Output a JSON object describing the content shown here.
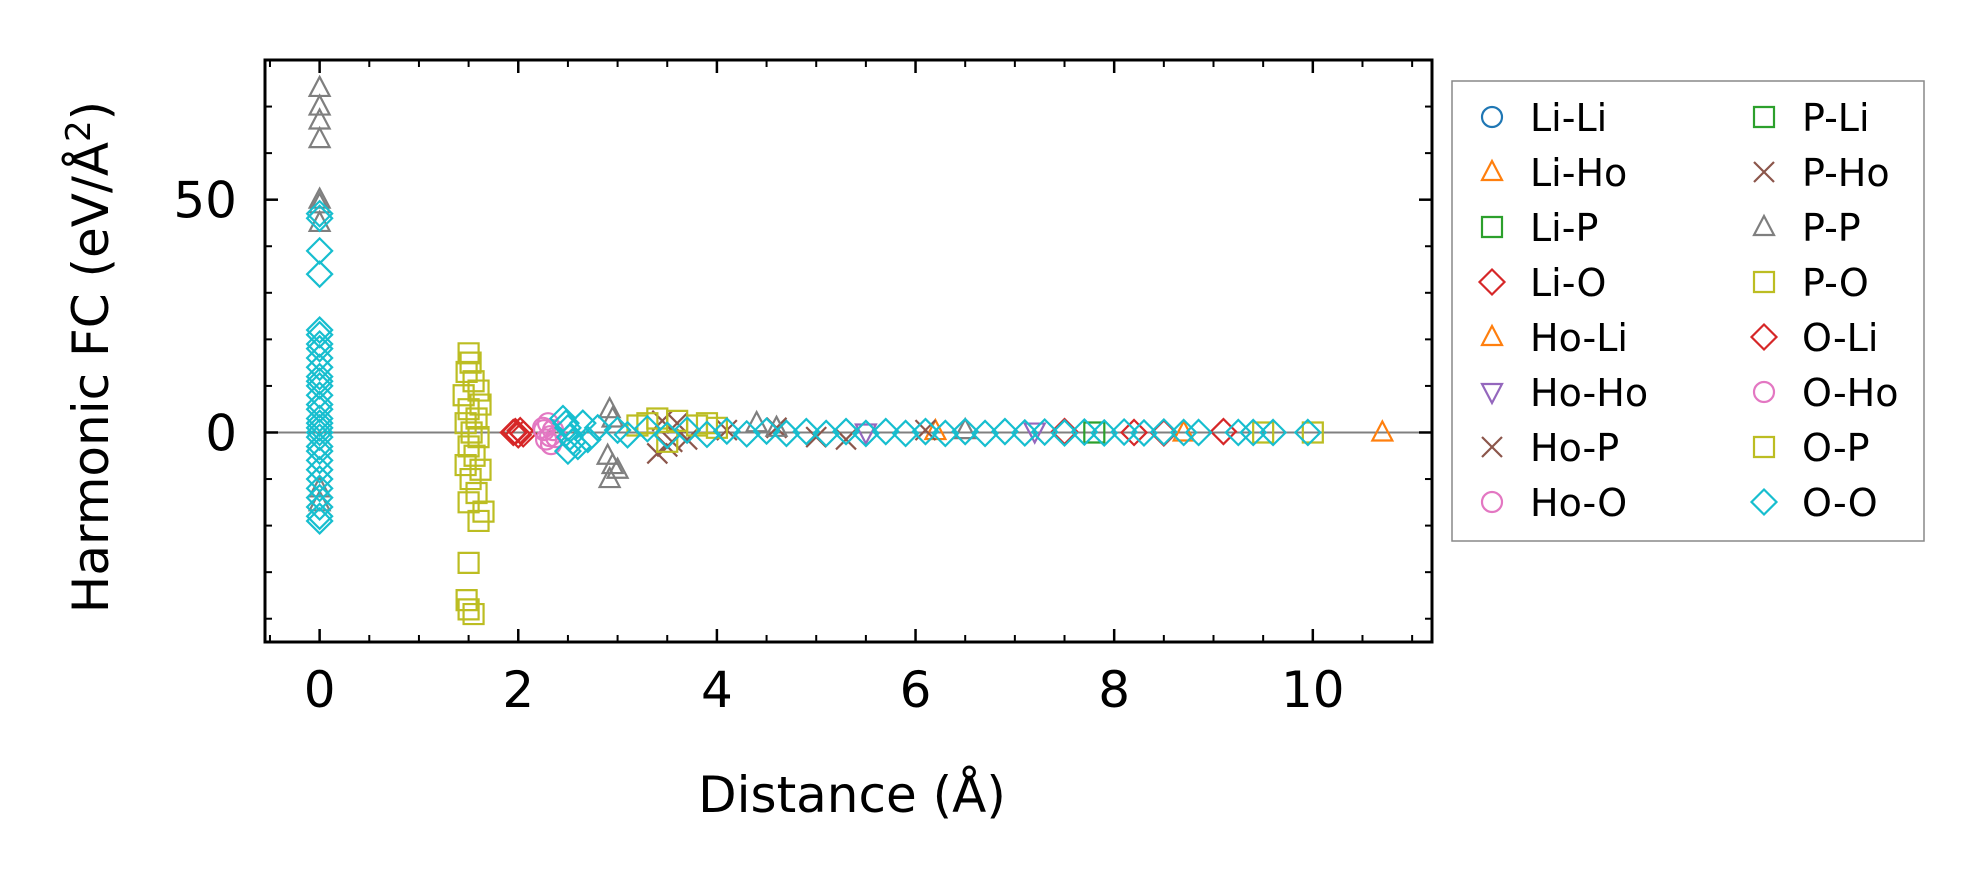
{
  "chart_data": {
    "type": "scatter",
    "xlabel": "Distance (Å)",
    "ylabel_main": "Harmonic FC (eV/Å",
    "ylabel_sup": "2",
    "ylabel_close": ")",
    "xlim": [
      -0.55,
      11.2
    ],
    "ylim": [
      -45,
      80
    ],
    "xticks": [
      0,
      2,
      4,
      6,
      8,
      10
    ],
    "xtick_labels": [
      "0",
      "2",
      "4",
      "6",
      "8",
      "10"
    ],
    "yticks": [
      0,
      50
    ],
    "ytick_labels": [
      "0",
      "50"
    ],
    "x_minor_step": 0.5,
    "y_minor_step": 10,
    "reference_line_y": 0,
    "legend_position": "outside-right",
    "series": [
      {
        "name": "Li-Li",
        "marker": "circle",
        "color": "#1f77b4",
        "points": []
      },
      {
        "name": "Li-Ho",
        "marker": "triangle-up",
        "color": "#ff7f0e",
        "points": [
          [
            10.7,
            0
          ]
        ]
      },
      {
        "name": "Li-P",
        "marker": "square",
        "color": "#2ca02c",
        "points": []
      },
      {
        "name": "Li-O",
        "marker": "diamond",
        "color": "#d62728",
        "points": [
          [
            1.95,
            0
          ],
          [
            2.0,
            -0.5
          ],
          [
            2.02,
            0.4
          ],
          [
            7.5,
            0.2
          ],
          [
            8.2,
            0
          ],
          [
            8.5,
            -0.1
          ],
          [
            9.1,
            0.2
          ]
        ]
      },
      {
        "name": "Ho-Li",
        "marker": "triangle-up",
        "color": "#ff7f0e",
        "points": [
          [
            6.2,
            0.3
          ],
          [
            8.7,
            0
          ]
        ]
      },
      {
        "name": "Ho-Ho",
        "marker": "triangle-down",
        "color": "#9467bd",
        "points": [
          [
            5.5,
            0
          ],
          [
            7.2,
            0.2
          ]
        ]
      },
      {
        "name": "Ho-P",
        "marker": "x",
        "color": "#8c564b",
        "points": [
          [
            3.4,
            -4.5
          ],
          [
            3.5,
            -3
          ],
          [
            3.6,
            2
          ],
          [
            3.7,
            -1.5
          ],
          [
            4.6,
            1
          ],
          [
            5.3,
            -1.5
          ],
          [
            6.1,
            0.5
          ]
        ]
      },
      {
        "name": "Ho-O",
        "marker": "circle",
        "color": "#e377c2",
        "points": [
          [
            2.25,
            1
          ],
          [
            2.28,
            -1.5
          ],
          [
            2.3,
            2
          ],
          [
            2.33,
            -2.5
          ],
          [
            2.35,
            0.5
          ],
          [
            2.38,
            -1
          ]
        ]
      },
      {
        "name": "P-Li",
        "marker": "square",
        "color": "#2ca02c",
        "points": [
          [
            7.8,
            0
          ]
        ]
      },
      {
        "name": "P-Ho",
        "marker": "x",
        "color": "#8c564b",
        "points": [
          [
            3.45,
            2.5
          ],
          [
            3.55,
            -2
          ],
          [
            4.1,
            0.5
          ],
          [
            5.0,
            -1
          ]
        ]
      },
      {
        "name": "P-P",
        "marker": "triangle-up",
        "color": "#7f7f7f",
        "points": [
          [
            0,
            74
          ],
          [
            0,
            70
          ],
          [
            0,
            67
          ],
          [
            0,
            63
          ],
          [
            0,
            50
          ],
          [
            0,
            49
          ],
          [
            0,
            45
          ],
          [
            0,
            -12
          ],
          [
            0,
            -15
          ],
          [
            2.92,
            5
          ],
          [
            2.95,
            3
          ],
          [
            2.9,
            -5
          ],
          [
            2.95,
            -7
          ],
          [
            2.92,
            -10
          ],
          [
            3.0,
            -8
          ],
          [
            4.4,
            2
          ],
          [
            4.6,
            1
          ],
          [
            6.5,
            0.5
          ]
        ]
      },
      {
        "name": "P-O",
        "marker": "square",
        "color": "#bcbd22",
        "points": [
          [
            1.5,
            17
          ],
          [
            1.52,
            15
          ],
          [
            1.48,
            13
          ],
          [
            1.55,
            11
          ],
          [
            1.6,
            9
          ],
          [
            1.45,
            8
          ],
          [
            1.62,
            6
          ],
          [
            1.5,
            5
          ],
          [
            1.58,
            3
          ],
          [
            1.47,
            2
          ],
          [
            1.53,
            0
          ],
          [
            1.6,
            -1
          ],
          [
            1.5,
            -3
          ],
          [
            1.56,
            -5
          ],
          [
            1.47,
            -7
          ],
          [
            1.62,
            -8
          ],
          [
            1.52,
            -10
          ],
          [
            1.58,
            -13
          ],
          [
            1.5,
            -15
          ],
          [
            1.65,
            -17
          ],
          [
            1.6,
            -19
          ],
          [
            1.5,
            -28
          ],
          [
            1.48,
            -36
          ],
          [
            1.5,
            -38
          ],
          [
            1.55,
            -39
          ],
          [
            3.3,
            2
          ],
          [
            3.4,
            3
          ],
          [
            3.6,
            2.5
          ],
          [
            3.8,
            1.5
          ],
          [
            4.0,
            1
          ],
          [
            3.5,
            -2
          ],
          [
            9.5,
            0
          ],
          [
            10.0,
            0
          ]
        ]
      },
      {
        "name": "O-Li",
        "marker": "diamond",
        "color": "#d62728",
        "points": [
          [
            1.97,
            0.2
          ],
          [
            2.05,
            -0.3
          ]
        ]
      },
      {
        "name": "O-Ho",
        "marker": "circle",
        "color": "#e377c2",
        "points": [
          [
            2.26,
            0.5
          ],
          [
            2.32,
            -0.8
          ]
        ]
      },
      {
        "name": "O-P",
        "marker": "square",
        "color": "#bcbd22",
        "points": [
          [
            3.2,
            1.5
          ],
          [
            3.9,
            2
          ]
        ]
      },
      {
        "name": "O-O",
        "marker": "diamond",
        "color": "#17becf",
        "points": [
          [
            0,
            47
          ],
          [
            0,
            46
          ],
          [
            0,
            39
          ],
          [
            0,
            34
          ],
          [
            0,
            22
          ],
          [
            0,
            21
          ],
          [
            0,
            19
          ],
          [
            0,
            18
          ],
          [
            0,
            16
          ],
          [
            0,
            14
          ],
          [
            0,
            12
          ],
          [
            0,
            11
          ],
          [
            0,
            10
          ],
          [
            0,
            8
          ],
          [
            0,
            6
          ],
          [
            0,
            5
          ],
          [
            0,
            3
          ],
          [
            0,
            2
          ],
          [
            0,
            1
          ],
          [
            0,
            0
          ],
          [
            0,
            -1
          ],
          [
            0,
            -3
          ],
          [
            0,
            -4
          ],
          [
            0,
            -6
          ],
          [
            0,
            -8
          ],
          [
            0,
            -10
          ],
          [
            0,
            -12
          ],
          [
            0,
            -14
          ],
          [
            0,
            -16
          ],
          [
            0,
            -18
          ],
          [
            0,
            -19
          ],
          [
            2.45,
            3
          ],
          [
            2.48,
            2
          ],
          [
            2.5,
            1
          ],
          [
            2.52,
            -1
          ],
          [
            2.55,
            -2
          ],
          [
            2.6,
            -3
          ],
          [
            2.5,
            -4
          ],
          [
            2.65,
            2
          ],
          [
            2.7,
            -1.5
          ],
          [
            2.8,
            1
          ],
          [
            3.0,
            0.5
          ],
          [
            3.1,
            -0.5
          ],
          [
            3.3,
            0.8
          ],
          [
            3.5,
            -0.6
          ],
          [
            3.7,
            0.5
          ],
          [
            3.9,
            -0.4
          ],
          [
            4.1,
            0.3
          ],
          [
            4.3,
            -0.3
          ],
          [
            4.5,
            0.3
          ],
          [
            4.7,
            -0.2
          ],
          [
            4.9,
            0.2
          ],
          [
            5.1,
            -0.2
          ],
          [
            5.3,
            0.2
          ],
          [
            5.5,
            -0.2
          ],
          [
            5.7,
            0.2
          ],
          [
            5.9,
            -0.2
          ],
          [
            6.1,
            0.2
          ],
          [
            6.3,
            -0.2
          ],
          [
            6.5,
            0.2
          ],
          [
            6.7,
            -0.2
          ],
          [
            6.9,
            0.2
          ],
          [
            7.1,
            -0.1
          ],
          [
            7.3,
            0.1
          ],
          [
            7.5,
            -0.1
          ],
          [
            7.7,
            0.1
          ],
          [
            7.9,
            -0.1
          ],
          [
            8.1,
            0.1
          ],
          [
            8.3,
            -0.1
          ],
          [
            8.5,
            0.1
          ],
          [
            8.7,
            0
          ],
          [
            8.85,
            0
          ],
          [
            9.25,
            0
          ],
          [
            9.4,
            0
          ],
          [
            9.6,
            0
          ],
          [
            9.95,
            0
          ]
        ]
      }
    ]
  }
}
